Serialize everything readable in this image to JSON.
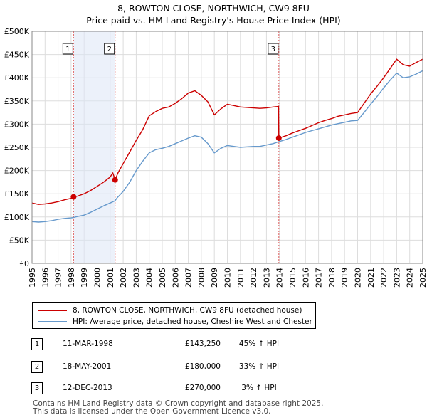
{
  "chart_data": {
    "type": "line",
    "title": "8, ROWTON CLOSE, NORTHWICH, CW9 8FU",
    "subtitle": "Price paid vs. HM Land Registry's House Price Index (HPI)",
    "xlim": [
      1995,
      2025
    ],
    "ylim": [
      0,
      500000
    ],
    "y_ticks": [
      0,
      50000,
      100000,
      150000,
      200000,
      250000,
      300000,
      350000,
      400000,
      450000,
      500000
    ],
    "y_tick_labels": [
      "£0",
      "£50K",
      "£100K",
      "£150K",
      "£200K",
      "£250K",
      "£300K",
      "£350K",
      "£400K",
      "£450K",
      "£500K"
    ],
    "x_ticks": [
      "1995",
      "1996",
      "1997",
      "1998",
      "1999",
      "2000",
      "2001",
      "2002",
      "2003",
      "2004",
      "2005",
      "2006",
      "2007",
      "2008",
      "2009",
      "2010",
      "2011",
      "2012",
      "2013",
      "2014",
      "2015",
      "2016",
      "2017",
      "2018",
      "2019",
      "2020",
      "2021",
      "2022",
      "2023",
      "2024",
      "2025"
    ],
    "grid": true,
    "shaded_regions": [
      [
        1998.19,
        2001.38
      ]
    ],
    "series": [
      {
        "name": "8, ROWTON CLOSE, NORTHWICH, CW9 8FU (detached house)",
        "color": "#cc0000",
        "x": [
          1995.0,
          1995.5,
          1996.0,
          1996.5,
          1997.0,
          1997.5,
          1998.0,
          1998.19,
          1998.5,
          1999.0,
          1999.5,
          2000.0,
          2000.5,
          2001.0,
          2001.2,
          2001.38,
          2001.6,
          2002.0,
          2002.5,
          2003.0,
          2003.5,
          2004.0,
          2004.5,
          2005.0,
          2005.5,
          2006.0,
          2006.5,
          2007.0,
          2007.5,
          2008.0,
          2008.5,
          2009.0,
          2009.5,
          2010.0,
          2010.5,
          2011.0,
          2011.5,
          2012.0,
          2012.5,
          2013.0,
          2013.5,
          2013.93,
          2013.95,
          2014.5,
          2015.0,
          2015.5,
          2016.0,
          2016.5,
          2017.0,
          2017.5,
          2018.0,
          2018.5,
          2019.0,
          2019.5,
          2020.0,
          2020.5,
          2021.0,
          2021.5,
          2022.0,
          2022.5,
          2023.0,
          2023.5,
          2024.0,
          2024.5,
          2025.0
        ],
        "values": [
          130000,
          127000,
          128000,
          130000,
          133000,
          137000,
          140000,
          143250,
          145000,
          150000,
          157000,
          166000,
          175000,
          186000,
          195000,
          180000,
          195000,
          215000,
          240000,
          265000,
          288000,
          318000,
          327000,
          334000,
          337000,
          345000,
          355000,
          367000,
          372000,
          362000,
          348000,
          320000,
          333000,
          343000,
          340000,
          337000,
          336000,
          335000,
          334000,
          335000,
          337000,
          338000,
          270000,
          275000,
          281000,
          286000,
          291000,
          297000,
          303000,
          308000,
          312000,
          317000,
          320000,
          323000,
          325000,
          345000,
          365000,
          382000,
          400000,
          420000,
          440000,
          428000,
          425000,
          433000,
          440000
        ]
      },
      {
        "name": "HPI: Average price, detached house, Cheshire West and Chester",
        "color": "#6699cc",
        "x": [
          1995.0,
          1995.5,
          1996.0,
          1996.5,
          1997.0,
          1997.5,
          1998.0,
          1998.19,
          1998.5,
          1999.0,
          1999.5,
          2000.0,
          2000.5,
          2001.0,
          2001.38,
          2001.5,
          2002.0,
          2002.5,
          2003.0,
          2003.5,
          2004.0,
          2004.5,
          2005.0,
          2005.5,
          2006.0,
          2006.5,
          2007.0,
          2007.5,
          2008.0,
          2008.5,
          2009.0,
          2009.5,
          2010.0,
          2010.5,
          2011.0,
          2011.5,
          2012.0,
          2012.5,
          2013.0,
          2013.5,
          2013.93,
          2014.5,
          2015.0,
          2015.5,
          2016.0,
          2016.5,
          2017.0,
          2017.5,
          2018.0,
          2018.5,
          2019.0,
          2019.5,
          2020.0,
          2020.5,
          2021.0,
          2021.5,
          2022.0,
          2022.5,
          2023.0,
          2023.5,
          2024.0,
          2024.5,
          2025.0
        ],
        "values": [
          90000,
          89000,
          90000,
          92000,
          95000,
          97000,
          98000,
          99000,
          101000,
          104000,
          110000,
          117000,
          124000,
          130000,
          135000,
          140000,
          155000,
          175000,
          200000,
          220000,
          238000,
          245000,
          248000,
          252000,
          258000,
          264000,
          270000,
          275000,
          272000,
          258000,
          238000,
          248000,
          254000,
          252000,
          250000,
          251000,
          252000,
          252000,
          255000,
          258000,
          262000,
          267000,
          272000,
          277000,
          282000,
          286000,
          290000,
          294000,
          298000,
          301000,
          304000,
          307000,
          308000,
          325000,
          343000,
          360000,
          378000,
          395000,
          410000,
          400000,
          402000,
          408000,
          415000
        ]
      }
    ],
    "markers": [
      {
        "label": "1",
        "x": 1998.19,
        "value": 143250
      },
      {
        "label": "2",
        "x": 2001.38,
        "value": 180000
      },
      {
        "label": "3",
        "x": 2013.95,
        "value": 270000
      }
    ]
  },
  "legend": {
    "property_label": "8, ROWTON CLOSE, NORTHWICH, CW9 8FU (detached house)",
    "hpi_label": "HPI: Average price, detached house, Cheshire West and Chester"
  },
  "transactions": [
    {
      "num": "1",
      "date": "11-MAR-1998",
      "price": "£143,250",
      "hpi": "45% ↑ HPI"
    },
    {
      "num": "2",
      "date": "18-MAY-2001",
      "price": "£180,000",
      "hpi": "33% ↑ HPI"
    },
    {
      "num": "3",
      "date": "12-DEC-2013",
      "price": "£270,000",
      "hpi": "3% ↑ HPI"
    }
  ],
  "footer": {
    "line1": "Contains HM Land Registry data © Crown copyright and database right 2025.",
    "line2": "This data is licensed under the Open Government Licence v3.0."
  }
}
